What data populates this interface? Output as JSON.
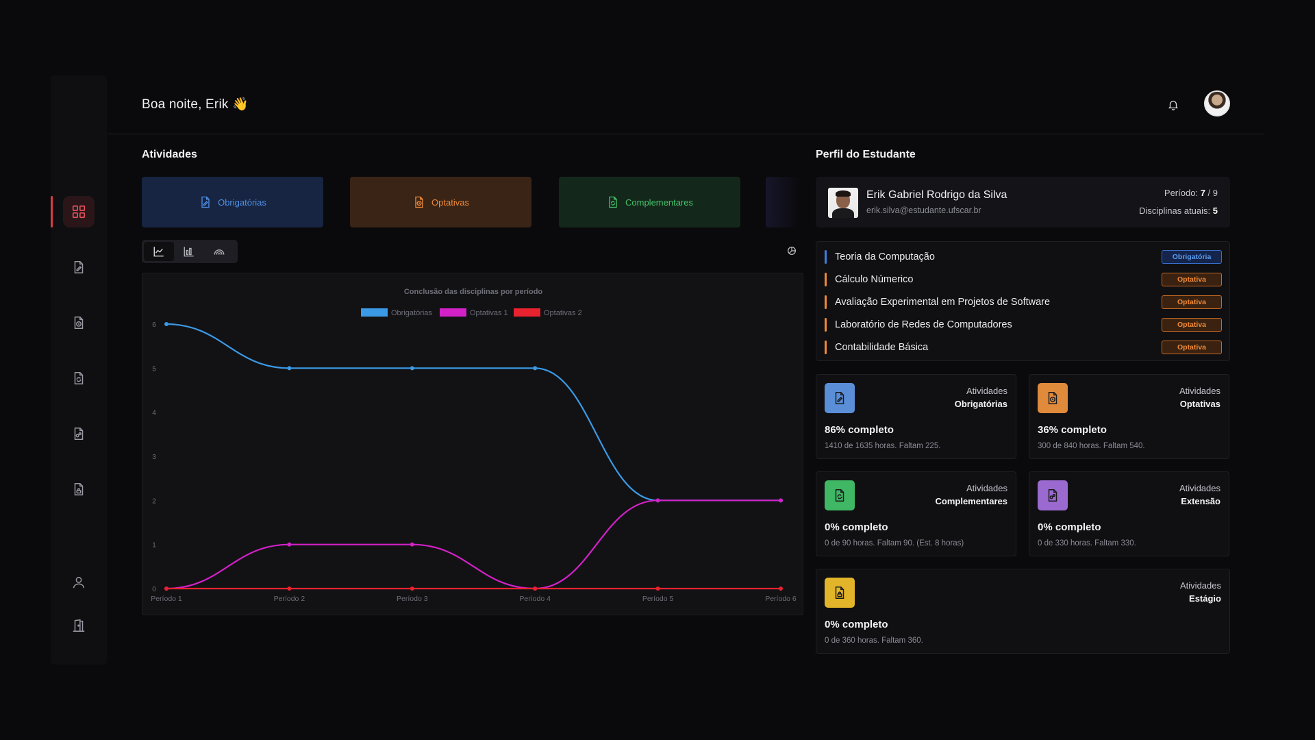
{
  "header": {
    "greeting": "Boa noite, Erik 👋"
  },
  "activities": {
    "title": "Atividades",
    "tabs": [
      {
        "label": "Obrigatórias",
        "icon": "file-edit-icon",
        "color": "#4f8fe6"
      },
      {
        "label": "Optativas",
        "icon": "file-clock-icon",
        "color": "#ef8a3a"
      },
      {
        "label": "Complementares",
        "icon": "file-refresh-icon",
        "color": "#45c46a"
      }
    ]
  },
  "chart_data": {
    "type": "line",
    "title": "Conclusão das disciplinas por período",
    "categories": [
      "Período 1",
      "Período 2",
      "Período 3",
      "Período 4",
      "Período 5",
      "Período 6"
    ],
    "series": [
      {
        "name": "Obrigatórias",
        "values": [
          6,
          5,
          5,
          5,
          2,
          2
        ],
        "color": "#3b9ae6"
      },
      {
        "name": "Optativas 1",
        "values": [
          0,
          1,
          1,
          0,
          2,
          2
        ],
        "color": "#d321c8"
      },
      {
        "name": "Optativas 2",
        "values": [
          0,
          0,
          0,
          0,
          0,
          0
        ],
        "color": "#e8222e"
      }
    ],
    "yticks": [
      "0",
      "1",
      "2",
      "3",
      "4",
      "5",
      "6"
    ],
    "ylim": [
      0,
      6
    ],
    "grid": false,
    "legend": "top-center",
    "smooth": true
  },
  "profile": {
    "title": "Perfil do Estudante",
    "name": "Erik Gabriel Rodrigo da Silva",
    "email": "erik.silva@estudante.ufscar.br",
    "period_label": "Período:",
    "period_value": "7",
    "period_total": "9",
    "disciplines_label": "Disciplinas atuais:",
    "disciplines_value": "5"
  },
  "courses": [
    {
      "name": "Teoria da Computação",
      "badge": "Obrigatória",
      "kind": "obrig",
      "color": "#3d7fe0"
    },
    {
      "name": "Cálculo Númerico",
      "badge": "Optativa",
      "kind": "opt",
      "color": "#f08a36"
    },
    {
      "name": "Avaliação Experimental em Projetos de Software",
      "badge": "Optativa",
      "kind": "opt",
      "color": "#f08a36"
    },
    {
      "name": "Laboratório de Redes de Computadores",
      "badge": "Optativa",
      "kind": "opt",
      "color": "#f08a36"
    },
    {
      "name": "Contabilidade Básica",
      "badge": "Optativa",
      "kind": "opt",
      "color": "#f08a36"
    }
  ],
  "stats": [
    {
      "label1": "Atividades",
      "label2": "Obrigatórias",
      "percent": "86% completo",
      "hours": "1410 de 1635 horas. Faltam 225.",
      "color": "#5a8fd8",
      "icon": "file-edit-icon"
    },
    {
      "label1": "Atividades",
      "label2": "Optativas",
      "percent": "36% completo",
      "hours": "300 de 840 horas. Faltam 540.",
      "color": "#e08a3c",
      "icon": "file-clock-icon"
    },
    {
      "label1": "Atividades",
      "label2": "Complementares",
      "percent": "0% completo",
      "hours": "0 de 90 horas. Faltam 90. (Est. 8 horas)",
      "color": "#3fb764",
      "icon": "file-refresh-icon"
    },
    {
      "label1": "Atividades",
      "label2": "Extensão",
      "percent": "0% completo",
      "hours": "0 de 330 horas. Faltam 330.",
      "color": "#9a6ad0",
      "icon": "file-network-icon"
    },
    {
      "label1": "Atividades",
      "label2": "Estágio",
      "percent": "0% completo",
      "hours": "0 de 360 horas. Faltam 360.",
      "color": "#e2b429",
      "icon": "file-lock-icon"
    }
  ]
}
